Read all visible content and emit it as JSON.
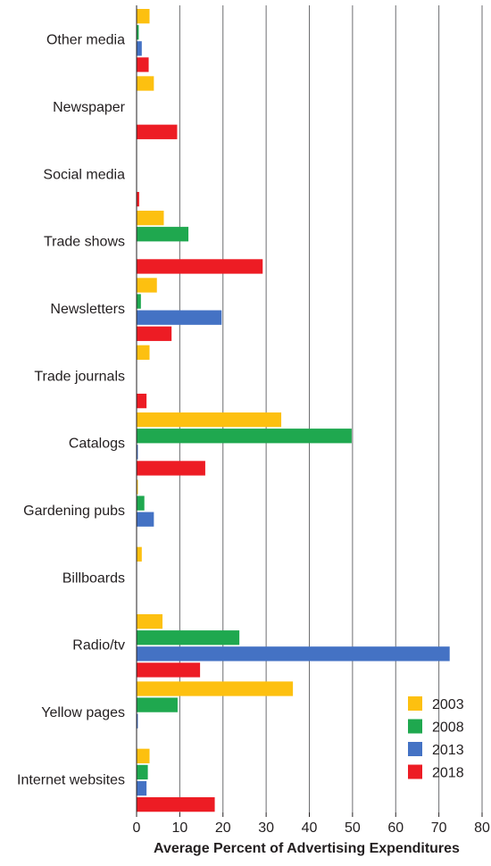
{
  "chart_data": {
    "type": "bar",
    "orientation": "horizontal",
    "title": "",
    "xlabel": "Average Percent of Advertising Expenditures",
    "ylabel": "",
    "xlim": [
      0,
      80
    ],
    "xticks": [
      "0",
      "10",
      "20",
      "30",
      "40",
      "50",
      "60",
      "70",
      "80"
    ],
    "grid": "vertical",
    "legend_position": "bottom-right",
    "categories": [
      "Other media",
      "Newspaper",
      "Social media",
      "Trade shows",
      "Newsletters",
      "Trade journals",
      "Catalogs",
      "Gardening pubs",
      "Billboards",
      "Radio/tv",
      "Yellow pages",
      "Internet websites"
    ],
    "series": [
      {
        "name": "2003",
        "color": "#fdc010",
        "values": [
          3,
          4,
          0,
          6.3,
          4.7,
          3,
          33.5,
          0.3,
          1.2,
          6,
          36.2,
          3
        ]
      },
      {
        "name": "2008",
        "color": "#1fa84f",
        "values": [
          0.5,
          0,
          0,
          12,
          1,
          0,
          49.8,
          1.8,
          0,
          23.8,
          9.5,
          2.6
        ]
      },
      {
        "name": "2013",
        "color": "#4472c4",
        "values": [
          1.2,
          0,
          0,
          0,
          19.7,
          0,
          0.3,
          4,
          0,
          72.5,
          0.3,
          2.3
        ]
      },
      {
        "name": "2018",
        "color": "#ed1c24",
        "values": [
          2.8,
          9.4,
          0.6,
          29.2,
          8.1,
          2.3,
          15.9,
          0,
          0,
          14.7,
          0,
          18.1
        ]
      }
    ]
  }
}
